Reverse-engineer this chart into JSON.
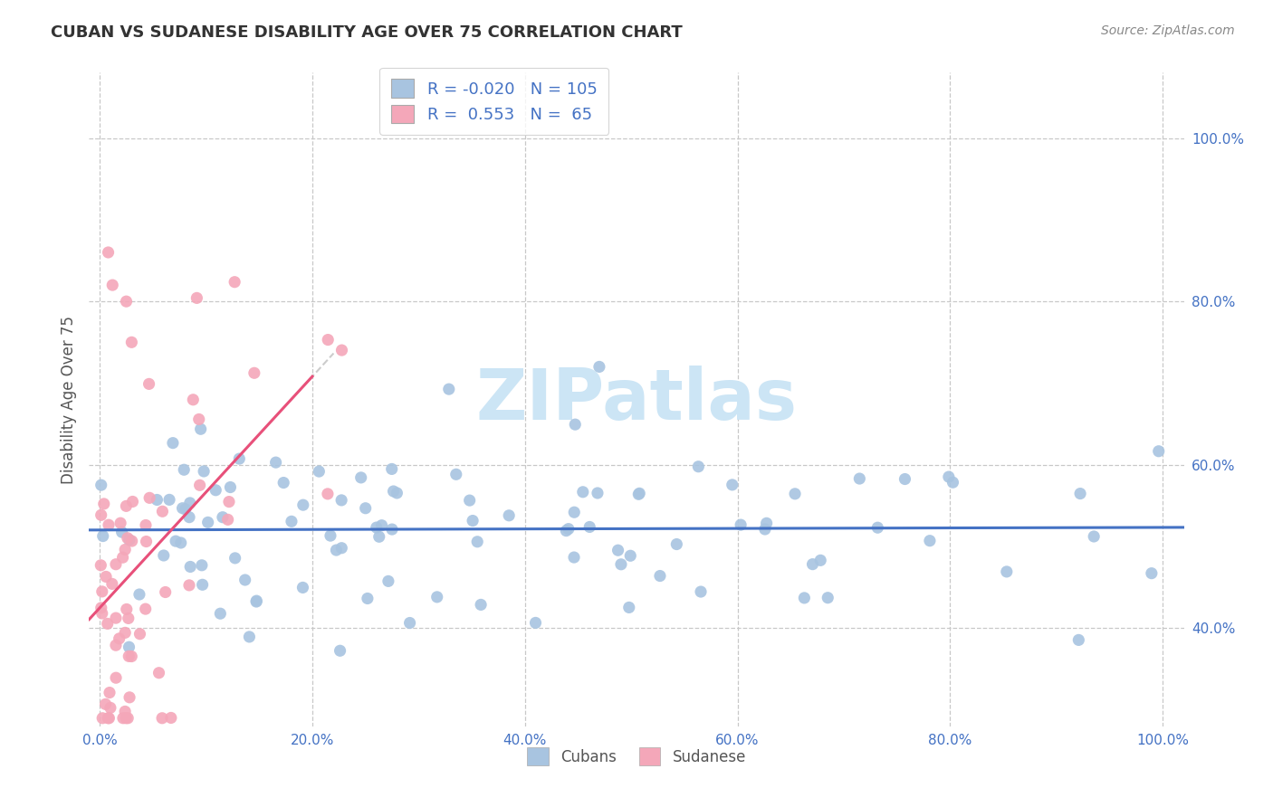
{
  "title": "CUBAN VS SUDANESE DISABILITY AGE OVER 75 CORRELATION CHART",
  "source_text": "Source: ZipAtlas.com",
  "ylabel": "Disability Age Over 75",
  "legend_cubans_R": "-0.020",
  "legend_cubans_N": "105",
  "legend_sudanese_R": "0.553",
  "legend_sudanese_N": "65",
  "cubans_color": "#a8c4e0",
  "sudanese_color": "#f4a7b9",
  "cubans_line_color": "#4472c4",
  "sudanese_line_color": "#e8507a",
  "watermark_color": "#cce5f5",
  "background_color": "#ffffff",
  "grid_color": "#c8c8c8",
  "tick_label_color": "#4472c4",
  "title_color": "#333333",
  "source_color": "#888888",
  "ylabel_color": "#555555",
  "x_tick_positions": [
    0.0,
    0.2,
    0.4,
    0.6,
    0.8,
    1.0
  ],
  "x_tick_labels": [
    "0.0%",
    "20.0%",
    "40.0%",
    "60.0%",
    "80.0%",
    "100.0%"
  ],
  "y_tick_positions": [
    0.4,
    0.6,
    0.8,
    1.0
  ],
  "y_tick_labels": [
    "40.0%",
    "60.0%",
    "80.0%",
    "100.0%"
  ],
  "xlim": [
    -0.01,
    1.02
  ],
  "ylim": [
    0.28,
    1.08
  ],
  "seed": 123
}
